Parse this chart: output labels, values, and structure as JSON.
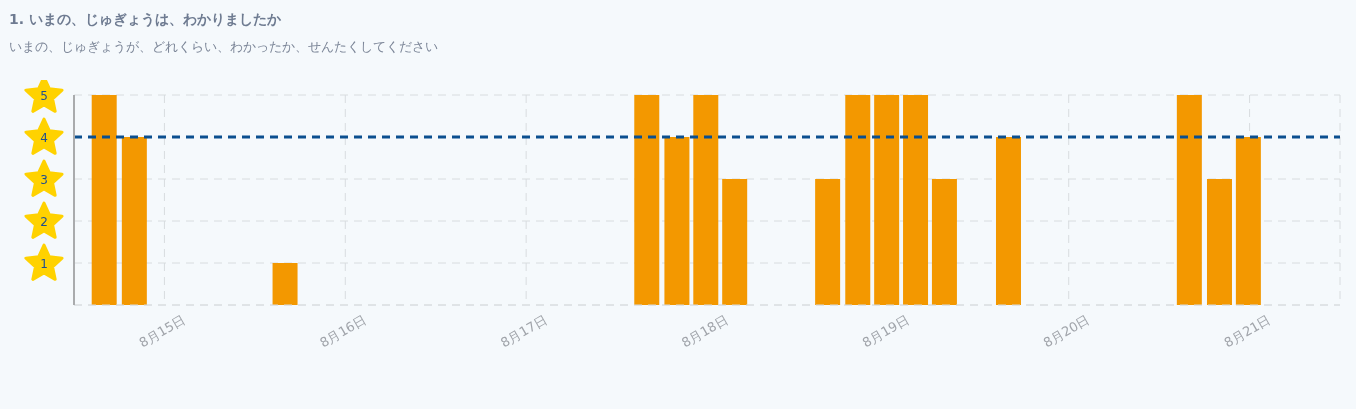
{
  "chart_data": {
    "type": "bar",
    "title": "1. いまの、じゅぎょうは、わかりましたか",
    "subtitle": "いまの、じゅぎょうが、どれくらい、わかったか、せんたくしてください",
    "x": [
      "--08-14T16:00",
      "--08-14T20:00",
      "--08-15T16:00",
      "--08-17T16:00",
      "--08-17T20:00",
      "--08-17T23:50",
      "--08-18T03:40",
      "--08-18T16:00",
      "--08-18T20:00",
      "--08-18T23:50",
      "--08-19T03:40",
      "--08-19T07:30",
      "--08-19T16:00",
      "--08-20T16:00",
      "--08-20T20:00",
      "--08-20T23:50"
    ],
    "values": [
      5,
      4,
      1,
      5,
      4,
      5,
      3,
      3,
      5,
      5,
      5,
      3,
      4,
      5,
      3,
      4
    ],
    "color": "#f39800",
    "xlim": [
      "--08-14T12:00",
      "--08-21T12:00"
    ],
    "xticks": [
      {
        "value": "--08-15",
        "label": "8月15日"
      },
      {
        "value": "--08-16",
        "label": "8月16日"
      },
      {
        "value": "--08-17",
        "label": "8月17日"
      },
      {
        "value": "--08-18",
        "label": "8月18日"
      },
      {
        "value": "--08-19",
        "label": "8月19日"
      },
      {
        "value": "--08-20",
        "label": "8月20日"
      },
      {
        "value": "--08-21",
        "label": "8月21日"
      }
    ],
    "ylim": [
      0,
      5
    ],
    "yticks": [
      {
        "value": 0,
        "label": null
      },
      1,
      2,
      3,
      4,
      5
    ],
    "ref_lines": [
      {
        "axis": "y",
        "value": 4,
        "color": "#0b4f8f",
        "line_style": "dashed"
      }
    ],
    "grid": true
  }
}
